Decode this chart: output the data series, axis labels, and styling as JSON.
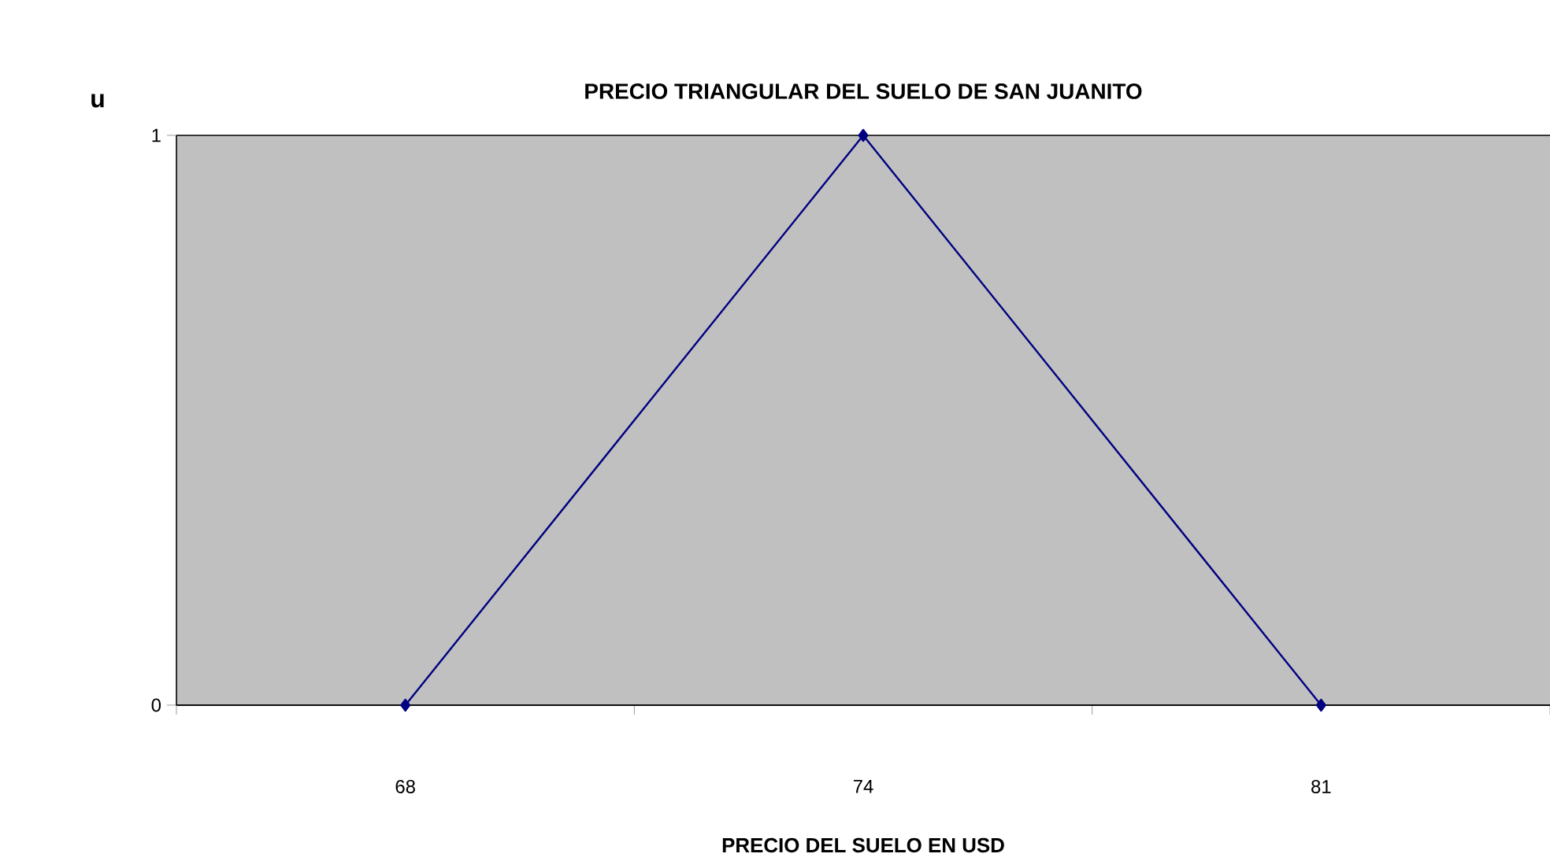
{
  "chart_data": {
    "type": "line",
    "title": "PRECIO TRIANGULAR DEL SUELO DE SAN JUANITO",
    "xlabel": "PRECIO DEL SUELO EN USD",
    "ylabel": "u",
    "categories": [
      "68",
      "74",
      "81"
    ],
    "series": [
      {
        "color": "#000080",
        "values": [
          0,
          1,
          0
        ]
      }
    ],
    "ylim": [
      0,
      1
    ],
    "yticks": [
      0,
      1
    ],
    "grid": "y",
    "marker": "diamond",
    "line_style": "solid"
  }
}
